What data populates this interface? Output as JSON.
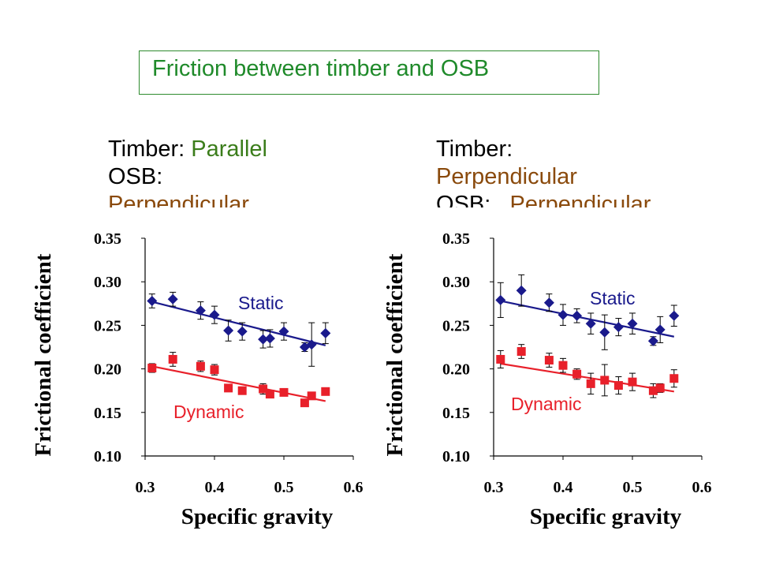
{
  "title": "Friction between timber and OSB",
  "colors": {
    "title": "#1f8a2a",
    "title_border": "#2e8b2e",
    "parallel": "#3b7d1b",
    "perpendicular": "#8a4a0c",
    "static": "#1a1a8c",
    "dynamic": "#e8202a"
  },
  "panels": [
    {
      "label_lines": [
        {
          "prefix": "Timber: ",
          "value": "Parallel",
          "value_color": "parallel"
        },
        {
          "prefix": "OSB:",
          "value": "",
          "value_color": "perpendicular"
        },
        {
          "prefix": "",
          "value": "Perpendicular",
          "value_color": "perpendicular"
        }
      ]
    },
    {
      "label_lines": [
        {
          "prefix": "Timber:",
          "value": "",
          "value_color": "perpendicular"
        },
        {
          "prefix": "",
          "value": "Perpendicular",
          "value_color": "perpendicular"
        },
        {
          "prefix": "OSB:",
          "value": "   Perpendicular",
          "value_color": "perpendicular"
        }
      ]
    }
  ],
  "chart_data": [
    {
      "type": "scatter",
      "xlabel": "Specific gravity",
      "ylabel": "Frictional coefficient",
      "xlim": [
        0.3,
        0.6
      ],
      "ylim": [
        0.1,
        0.35
      ],
      "xticks": [
        "0.3",
        "0.4",
        "0.5",
        "0.6"
      ],
      "yticks": [
        "0.10",
        "0.15",
        "0.20",
        "0.25",
        "0.30",
        "0.35"
      ],
      "grid": false,
      "series": [
        {
          "name": "Static",
          "color": "#1a1a8c",
          "marker": "diamond",
          "x": [
            0.31,
            0.34,
            0.38,
            0.4,
            0.42,
            0.44,
            0.47,
            0.48,
            0.5,
            0.53,
            0.54,
            0.56
          ],
          "y": [
            0.278,
            0.28,
            0.267,
            0.262,
            0.244,
            0.243,
            0.234,
            0.235,
            0.243,
            0.225,
            0.228,
            0.241
          ],
          "err": [
            0.008,
            0.008,
            0.01,
            0.01,
            0.012,
            0.01,
            0.01,
            0.01,
            0.01,
            0.005,
            0.025,
            0.012
          ],
          "trend": [
            [
              0.31,
              0.277
            ],
            [
              0.56,
              0.227
            ]
          ]
        },
        {
          "name": "Dynamic",
          "color": "#e8202a",
          "marker": "square",
          "x": [
            0.31,
            0.34,
            0.38,
            0.4,
            0.42,
            0.44,
            0.47,
            0.48,
            0.5,
            0.53,
            0.54,
            0.56
          ],
          "y": [
            0.201,
            0.211,
            0.203,
            0.199,
            0.178,
            0.175,
            0.177,
            0.171,
            0.173,
            0.161,
            0.169,
            0.174
          ],
          "err": [
            0.005,
            0.008,
            0.006,
            0.006,
            0.004,
            0.004,
            0.006,
            0.004,
            0.004,
            0.004,
            0.004,
            0.004
          ],
          "trend": [
            [
              0.31,
              0.203
            ],
            [
              0.56,
              0.163
            ]
          ]
        }
      ]
    },
    {
      "type": "scatter",
      "xlabel": "Specific gravity",
      "ylabel": "Frictional coefficient",
      "xlim": [
        0.3,
        0.6
      ],
      "ylim": [
        0.1,
        0.35
      ],
      "xticks": [
        "0.3",
        "0.4",
        "0.5",
        "0.6"
      ],
      "yticks": [
        "0.10",
        "0.15",
        "0.20",
        "0.25",
        "0.30",
        "0.35"
      ],
      "grid": false,
      "series": [
        {
          "name": "Static",
          "color": "#1a1a8c",
          "marker": "diamond",
          "x": [
            0.31,
            0.34,
            0.38,
            0.4,
            0.42,
            0.44,
            0.46,
            0.48,
            0.5,
            0.53,
            0.54,
            0.56
          ],
          "y": [
            0.279,
            0.29,
            0.276,
            0.262,
            0.261,
            0.252,
            0.242,
            0.248,
            0.252,
            0.232,
            0.245,
            0.261
          ],
          "err": [
            0.02,
            0.018,
            0.01,
            0.012,
            0.008,
            0.012,
            0.02,
            0.01,
            0.012,
            0.005,
            0.015,
            0.012
          ],
          "trend": [
            [
              0.31,
              0.278
            ],
            [
              0.56,
              0.237
            ]
          ]
        },
        {
          "name": "Dynamic",
          "color": "#e8202a",
          "marker": "square",
          "x": [
            0.31,
            0.34,
            0.38,
            0.4,
            0.42,
            0.44,
            0.46,
            0.48,
            0.5,
            0.53,
            0.54,
            0.56
          ],
          "y": [
            0.211,
            0.22,
            0.21,
            0.204,
            0.194,
            0.183,
            0.187,
            0.181,
            0.185,
            0.175,
            0.178,
            0.189
          ],
          "err": [
            0.01,
            0.008,
            0.008,
            0.008,
            0.006,
            0.012,
            0.018,
            0.01,
            0.01,
            0.008,
            0.005,
            0.01
          ],
          "trend": [
            [
              0.31,
              0.206
            ],
            [
              0.56,
              0.174
            ]
          ]
        }
      ]
    }
  ]
}
